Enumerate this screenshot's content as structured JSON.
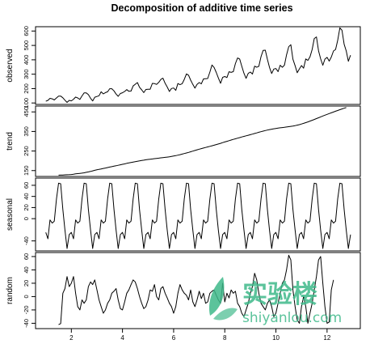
{
  "chart_data": {
    "type": "line",
    "title": "Decomposition of additive time series",
    "xlabel": "",
    "x_ticks": [
      2,
      4,
      6,
      8,
      10,
      12
    ],
    "xlim": [
      0.6,
      13.3
    ],
    "panels": [
      {
        "name": "observed",
        "ylabel": "observed",
        "ylim": [
          90,
          630
        ],
        "y_ticks": [
          100,
          200,
          300,
          400,
          500,
          600
        ],
        "x_start": 1,
        "x_step": 0.08333333,
        "values": [
          112,
          118,
          132,
          129,
          121,
          135,
          148,
          148,
          136,
          119,
          104,
          118,
          115,
          126,
          141,
          135,
          125,
          149,
          170,
          170,
          158,
          133,
          114,
          140,
          145,
          150,
          178,
          163,
          172,
          178,
          199,
          199,
          184,
          162,
          146,
          166,
          171,
          180,
          193,
          181,
          183,
          218,
          230,
          242,
          209,
          191,
          172,
          194,
          196,
          196,
          236,
          235,
          229,
          243,
          264,
          272,
          237,
          211,
          180,
          201,
          204,
          188,
          235,
          227,
          234,
          264,
          302,
          293,
          259,
          229,
          203,
          229,
          242,
          233,
          267,
          269,
          270,
          315,
          364,
          347,
          312,
          274,
          237,
          278,
          284,
          277,
          317,
          313,
          318,
          374,
          413,
          405,
          355,
          306,
          271,
          306,
          315,
          301,
          356,
          348,
          355,
          422,
          465,
          467,
          404,
          347,
          305,
          336,
          340,
          318,
          362,
          348,
          363,
          435,
          491,
          505,
          404,
          359,
          310,
          337,
          360,
          342,
          406,
          396,
          420,
          472,
          548,
          559,
          463,
          407,
          362,
          405,
          417,
          391,
          419,
          461,
          472,
          535,
          622,
          606,
          508,
          461,
          390,
          432
        ]
      },
      {
        "name": "trend",
        "ylabel": "trend",
        "ylim": [
          120,
          480
        ],
        "y_ticks": [
          150,
          250,
          350,
          450
        ],
        "x_start": 1.5,
        "x_step": 0.08333333,
        "values": [
          126.8,
          127.2,
          127.6,
          128.3,
          128.8,
          129.2,
          129.8,
          131.3,
          133.1,
          134.5,
          135.8,
          137.0,
          138.8,
          140.9,
          143.2,
          145.7,
          148.4,
          151.5,
          154.0,
          156.3,
          158.5,
          160.8,
          163.1,
          165.5,
          168.0,
          170.2,
          172.4,
          174.8,
          177.3,
          179.7,
          182.0,
          184.3,
          186.9,
          189.2,
          191.7,
          193.8,
          195.8,
          197.6,
          199.4,
          201.4,
          203.3,
          205.2,
          206.8,
          208.1,
          209.5,
          210.9,
          212.3,
          213.6,
          215.0,
          216.3,
          217.6,
          218.8,
          220.3,
          222.3,
          224.3,
          226.4,
          228.7,
          231.3,
          234.0,
          236.9,
          239.8,
          243.0,
          246.3,
          249.6,
          252.9,
          256.2,
          259.3,
          262.4,
          265.3,
          268.2,
          271.0,
          273.8,
          276.8,
          279.9,
          283.0,
          286.1,
          289.4,
          292.8,
          296.2,
          299.6,
          302.9,
          306.2,
          309.4,
          312.6,
          315.7,
          318.8,
          321.9,
          325.0,
          327.9,
          330.7,
          333.6,
          336.6,
          339.6,
          342.7,
          345.9,
          348.9,
          351.8,
          354.5,
          357.0,
          359.4,
          361.6,
          363.6,
          365.4,
          367.1,
          368.5,
          369.9,
          371.3,
          372.8,
          374.4,
          376.0,
          377.8,
          379.8,
          382.2,
          385.0,
          388.1,
          391.5,
          395.2,
          399.0,
          403.0,
          407.2,
          411.5,
          415.8,
          420.2,
          424.6,
          428.9,
          433.1,
          437.3,
          441.4,
          445.4,
          449.4,
          453.4,
          457.3,
          461.3,
          465.1,
          468.8,
          472.3
        ]
      },
      {
        "name": "seasonal",
        "ylabel": "seasonal",
        "ylim": [
          -58,
          73
        ],
        "y_ticks": [
          -40,
          0,
          20,
          40,
          60
        ],
        "x_start": 1,
        "x_step": 0.08333333,
        "pattern": [
          -24.7,
          -36.2,
          -2.2,
          -8.0,
          -4.5,
          35.4,
          63.8,
          62.8,
          16.5,
          -20.6,
          -53.6,
          -28.6
        ],
        "n": 144
      },
      {
        "name": "random",
        "ylabel": "random",
        "ylim": [
          -48,
          66
        ],
        "y_ticks": [
          -40,
          -20,
          0,
          20,
          40,
          60
        ],
        "x_start": 1.5,
        "x_step": 0.08333333,
        "values": [
          -42.0,
          -40.5,
          5.0,
          12.0,
          30.0,
          15.0,
          20.0,
          30.0,
          5.0,
          -15.0,
          -20.0,
          -5.0,
          -10.0,
          -5.0,
          15.0,
          22.0,
          18.0,
          25.0,
          10.0,
          -5.0,
          -15.0,
          -25.0,
          -20.0,
          -10.0,
          -5.0,
          5.0,
          8.0,
          12.0,
          -5.0,
          -18.0,
          -20.0,
          -8.0,
          5.0,
          10.0,
          18.0,
          25.0,
          22.0,
          12.0,
          0.0,
          -10.0,
          -18.0,
          -15.0,
          -5.0,
          10.0,
          8.0,
          18.0,
          0.0,
          -5.0,
          12.0,
          15.0,
          5.0,
          -2.0,
          -10.0,
          -15.0,
          -25.0,
          -15.0,
          5.0,
          18.0,
          10.0,
          5.0,
          2.0,
          -5.0,
          10.0,
          -8.0,
          -15.0,
          -5.0,
          8.0,
          -3.0,
          5.0,
          -10.0,
          -8.0,
          5.0,
          8.0,
          10.0,
          2.0,
          -5.0,
          -10.0,
          20.0,
          -8.0,
          5.0,
          -2.0,
          10.0,
          5.0,
          8.0,
          -10.0,
          -15.0,
          -25.0,
          -30.0,
          -20.0,
          -10.0,
          5.0,
          15.0,
          35.0,
          25.0,
          5.0,
          -10.0,
          -15.0,
          -20.0,
          -10.0,
          -5.0,
          -15.0,
          -30.0,
          -25.0,
          -10.0,
          5.0,
          20.0,
          25.0,
          40.0,
          62.0,
          55.0,
          10.0,
          -15.0,
          -35.0,
          -40.0,
          -15.0,
          0.0,
          -15.0,
          -40.0,
          -25.0,
          -10.0,
          10.0,
          30.0,
          55.0,
          60.0,
          20.0,
          -15.0,
          -40.0,
          -38.0,
          10.0,
          25.0
        ]
      }
    ]
  },
  "watermark": {
    "name": "实验楼",
    "url": "shiyanlou.com",
    "color": "#3fb98a"
  }
}
